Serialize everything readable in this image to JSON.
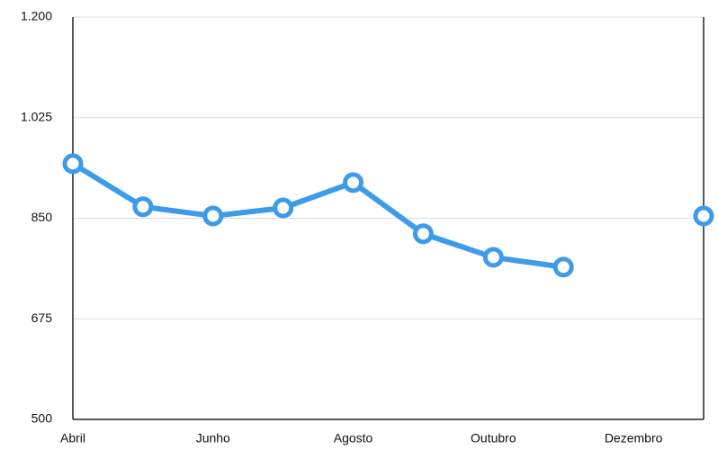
{
  "chart_data": {
    "type": "line",
    "categories": [
      "Abril",
      null,
      "Junho",
      null,
      "Agosto",
      null,
      "Outubro",
      null,
      "Dezembro",
      null
    ],
    "series": [
      {
        "color": "#3d9be9",
        "values": [
          945,
          870,
          854,
          868,
          912,
          823,
          782,
          765,
          null,
          854
        ]
      }
    ],
    "ylim": [
      500,
      1200
    ],
    "yticks": [
      500,
      675,
      850,
      {
        "value": 1025,
        "label": "1.025"
      },
      {
        "value": 1200,
        "label": "1.200"
      }
    ],
    "grid": true
  }
}
